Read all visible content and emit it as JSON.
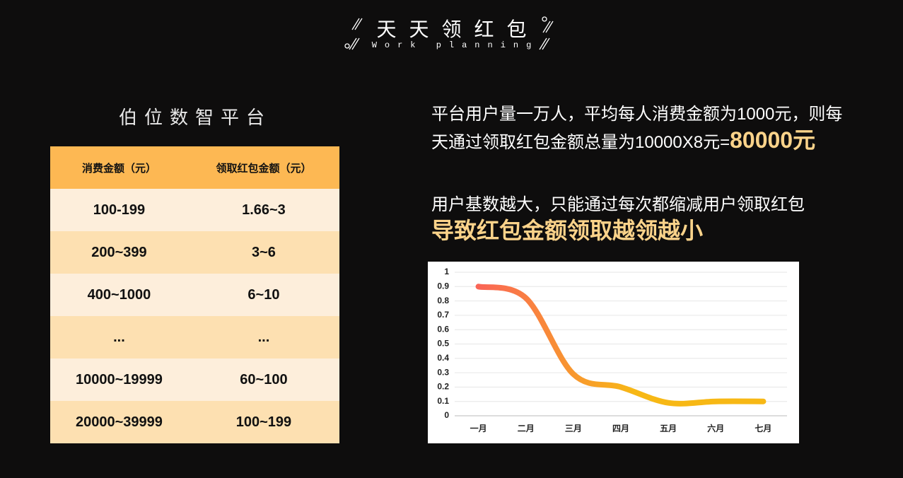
{
  "header": {
    "title": "天天领红包",
    "subtitle": "Work planning"
  },
  "left": {
    "title": "伯位数智平台",
    "table": {
      "columns": [
        "消费金额（元）",
        "领取红包金额（元）"
      ],
      "rows": [
        [
          "100-199",
          "1.66~3"
        ],
        [
          "200~399",
          "3~6"
        ],
        [
          "400~1000",
          "6~10"
        ],
        [
          "...",
          "..."
        ],
        [
          "10000~19999",
          "60~100"
        ],
        [
          "20000~39999",
          "100~199"
        ]
      ]
    }
  },
  "right": {
    "paragraph1": {
      "lines": [
        "平台用户量一万人，平均每人消费金额为1000元，则每",
        "天通过领取红包金额总量为10000X8元="
      ],
      "highlight": "80000元"
    },
    "paragraph2": {
      "line": "用户基数越大，只能通过每次都缩减用户领取红包",
      "highlight": "导致红包金额领取越领越小"
    }
  },
  "chart_data": {
    "type": "line",
    "categories": [
      "一月",
      "二月",
      "三月",
      "四月",
      "五月",
      "六月",
      "七月"
    ],
    "series": [
      {
        "values": [
          0.9,
          0.82,
          0.29,
          0.2,
          0.09,
          0.1,
          0.1
        ],
        "gradient": [
          "#fa6556",
          "#f7b815"
        ]
      }
    ],
    "ylim": [
      0,
      1
    ],
    "yticks": [
      0,
      0.1,
      0.2,
      0.3,
      0.4,
      0.5,
      0.6,
      0.7,
      0.8,
      0.9,
      1
    ],
    "grid": true,
    "smooth": true
  }
}
